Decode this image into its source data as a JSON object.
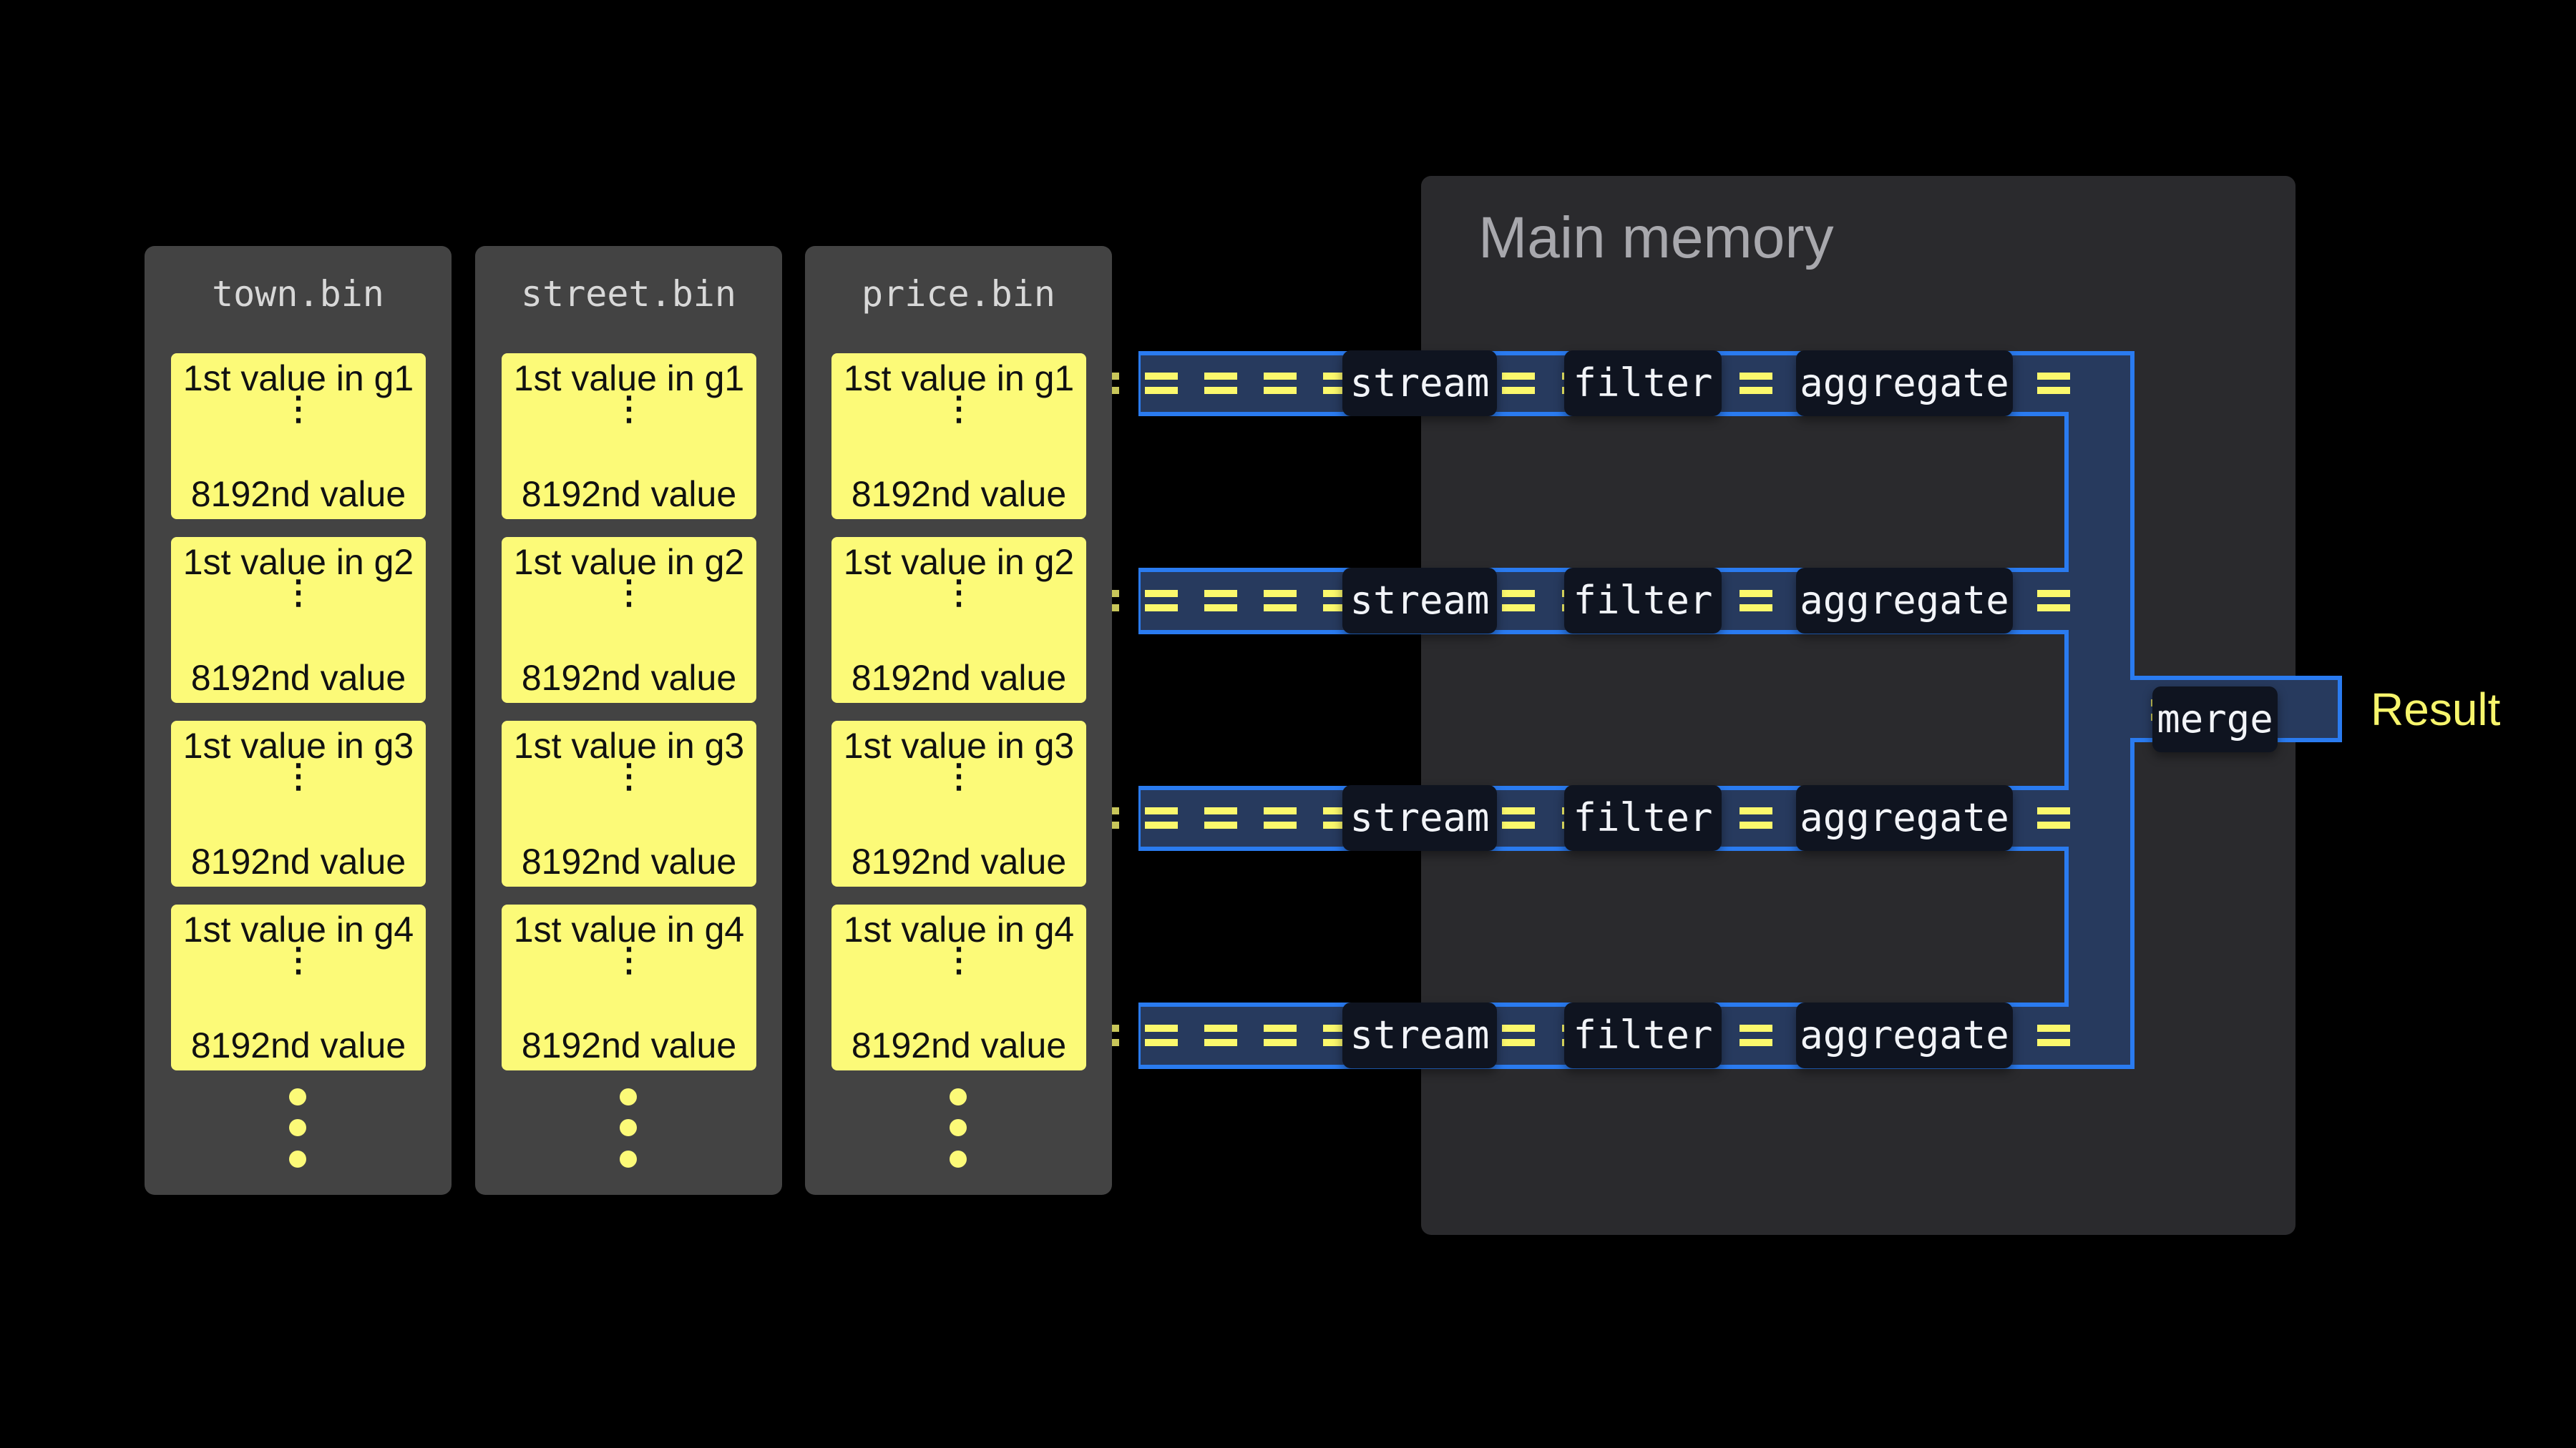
{
  "columns": [
    {
      "name": "town.bin",
      "groups": [
        {
          "first": "1st value in g1",
          "last": "8192nd value"
        },
        {
          "first": "1st value in g2",
          "last": "8192nd value"
        },
        {
          "first": "1st value in g3",
          "last": "8192nd value"
        },
        {
          "first": "1st value in g4",
          "last": "8192nd value"
        }
      ]
    },
    {
      "name": "street.bin",
      "groups": [
        {
          "first": "1st value in g1",
          "last": "8192nd value"
        },
        {
          "first": "1st value in g2",
          "last": "8192nd value"
        },
        {
          "first": "1st value in g3",
          "last": "8192nd value"
        },
        {
          "first": "1st value in g4",
          "last": "8192nd value"
        }
      ]
    },
    {
      "name": "price.bin",
      "groups": [
        {
          "first": "1st value in g1",
          "last": "8192nd value"
        },
        {
          "first": "1st value in g2",
          "last": "8192nd value"
        },
        {
          "first": "1st value in g3",
          "last": "8192nd value"
        },
        {
          "first": "1st value in g4",
          "last": "8192nd value"
        }
      ]
    }
  ],
  "card_ellipsis": "⋮",
  "main_memory": {
    "title": "Main memory"
  },
  "pipelines": [
    {
      "stages": [
        "stream",
        "filter",
        "aggregate"
      ]
    },
    {
      "stages": [
        "stream",
        "filter",
        "aggregate"
      ]
    },
    {
      "stages": [
        "stream",
        "filter",
        "aggregate"
      ]
    },
    {
      "stages": [
        "stream",
        "filter",
        "aggregate"
      ]
    }
  ],
  "merge_label": "merge",
  "result_label": "Result",
  "colors": {
    "card": "#fcfa78",
    "panel": "#434343",
    "memory": "#2a2a2d",
    "pipe_fill": "#273a5e",
    "pipe_border": "#2a7bf0",
    "result": "#f7f56c"
  }
}
